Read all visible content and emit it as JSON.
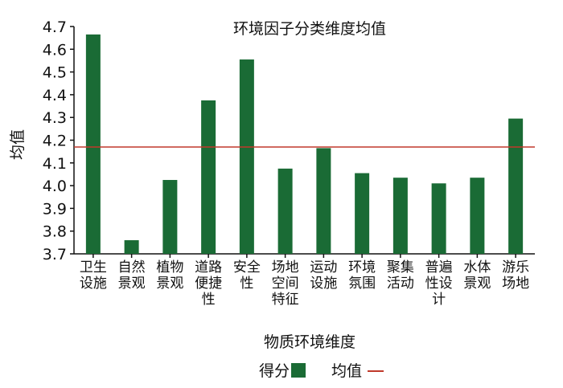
{
  "chart_data": {
    "type": "bar",
    "title": "环境因子分类维度均值",
    "xlabel": "物质环境维度",
    "ylabel": "均值",
    "categories": [
      [
        "卫生",
        "设施"
      ],
      [
        "自然",
        "景观"
      ],
      [
        "植物",
        "景观"
      ],
      [
        "道路",
        "便捷",
        "性"
      ],
      [
        "安全",
        "性"
      ],
      [
        "场地",
        "空间",
        "特征"
      ],
      [
        "运动",
        "设施"
      ],
      [
        "环境",
        "氛围"
      ],
      [
        "聚集",
        "活动"
      ],
      [
        "普遍",
        "性设",
        "计"
      ],
      [
        "水体",
        "景观"
      ],
      [
        "游乐",
        "场地"
      ]
    ],
    "series": [
      {
        "name": "得分",
        "values": [
          4.665,
          3.76,
          4.025,
          4.375,
          4.555,
          4.075,
          4.165,
          4.055,
          4.035,
          4.01,
          4.035,
          4.295
        ],
        "color": "#1a6b35"
      }
    ],
    "mean_line": {
      "name": "均值",
      "value": 4.17,
      "color": "#c0392b"
    },
    "yticks": [
      "3.7",
      "3.8",
      "3.9",
      "4.0",
      "4.1",
      "4.2",
      "4.3",
      "4.4",
      "4.5",
      "4.6",
      "4.7"
    ],
    "ylim": [
      3.7,
      4.7
    ],
    "grid": false,
    "legend": {
      "position": "bottom-center",
      "items": [
        "得分",
        "均值"
      ]
    }
  }
}
